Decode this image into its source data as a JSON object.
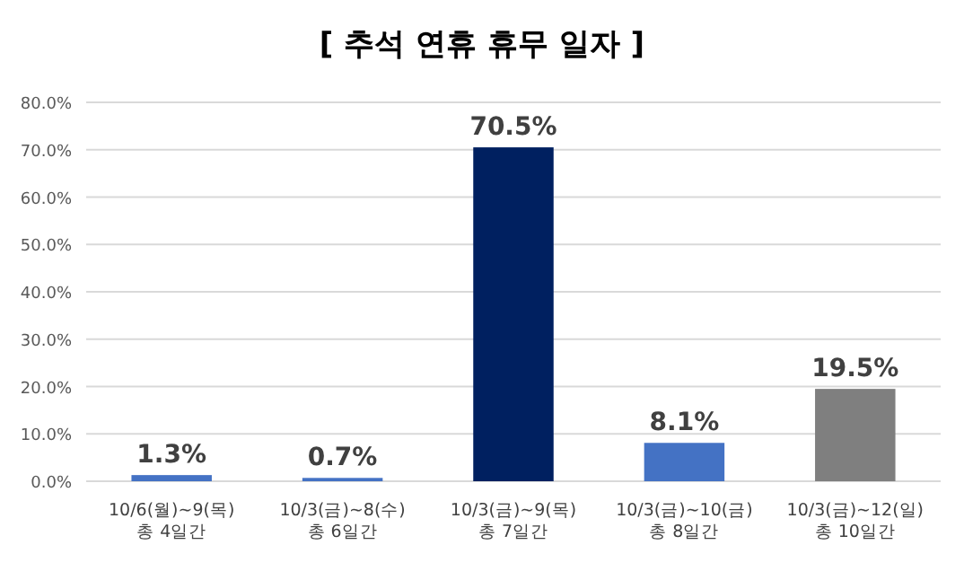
{
  "chart_data": {
    "type": "bar",
    "title": "[ 추석 연휴 휴무 일자 ]",
    "categories": [
      "10/6(월)~9(목)\n총 4일간",
      "10/3(금)~8(수)\n총 6일간",
      "10/3(금)~9(목)\n총 7일간",
      "10/3(금)~10(금)\n총 8일간",
      "10/3(금)~12(일)\n총 10일간"
    ],
    "values": [
      1.3,
      0.7,
      70.5,
      8.1,
      19.5
    ],
    "colors": [
      "#4472c4",
      "#4472c4",
      "#002060",
      "#4472c4",
      "#7f7f7f"
    ],
    "value_labels": [
      "1.3%",
      "0.7%",
      "70.5%",
      "8.1%",
      "19.5%"
    ],
    "ylim": [
      0,
      80
    ],
    "yticks": [
      {
        "value": 0,
        "label": "0.0%"
      },
      {
        "value": 10,
        "label": "10.0%"
      },
      {
        "value": 20,
        "label": "20.0%"
      },
      {
        "value": 30,
        "label": "30.0%"
      },
      {
        "value": 40,
        "label": "40.0%"
      },
      {
        "value": 50,
        "label": "50.0%"
      },
      {
        "value": 60,
        "label": "60.0%"
      },
      {
        "value": 70,
        "label": "70.0%"
      },
      {
        "value": 80,
        "label": "80.0%"
      }
    ],
    "grid": "y"
  }
}
